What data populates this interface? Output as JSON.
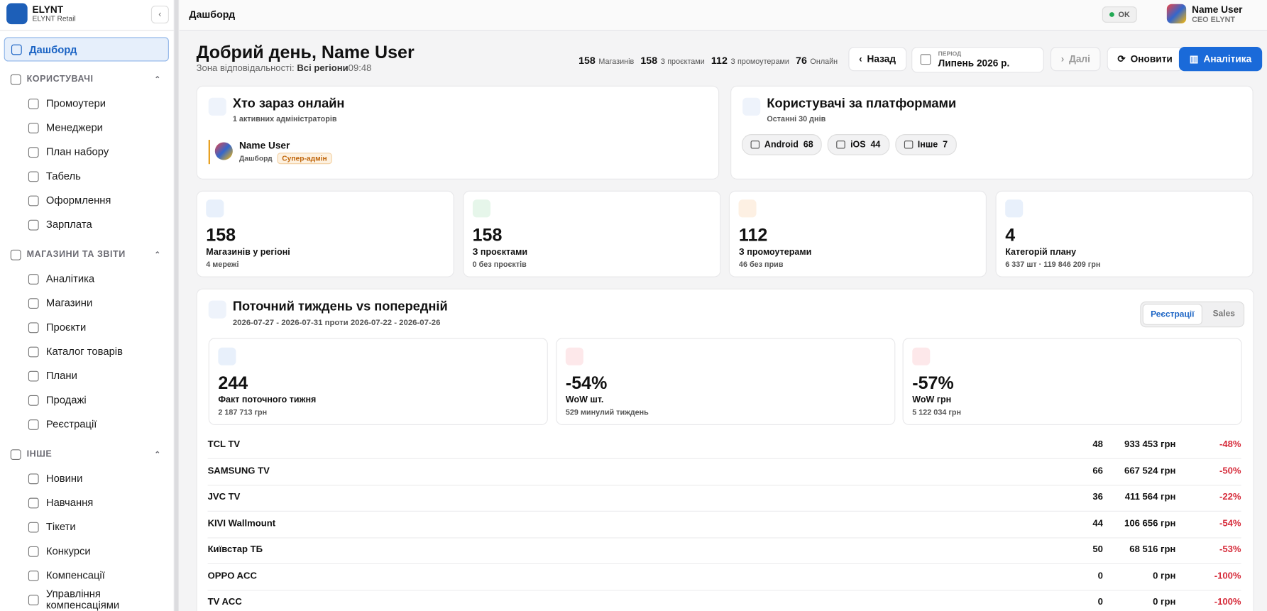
{
  "sidebar": {
    "brand": "ELYNT",
    "brand_sub": "ELYNT Retail",
    "active": "Дашборд",
    "sections": [
      {
        "title": "КОРИСТУВАЧІ",
        "items": [
          "Промоутери",
          "Менеджери",
          "План набору",
          "Табель",
          "Оформлення",
          "Зарплата"
        ]
      },
      {
        "title": "МАГАЗИНИ ТА ЗВІТИ",
        "items": [
          "Аналітика",
          "Магазини",
          "Проєкти",
          "Каталог товарів",
          "Плани",
          "Продажі",
          "Реєстрації"
        ]
      },
      {
        "title": "ІНШЕ",
        "items": [
          "Новини",
          "Навчання",
          "Тікети",
          "Конкурси",
          "Компенсації",
          "Управління компенсаціями"
        ]
      }
    ]
  },
  "topbar": {
    "page": "Дашборд",
    "status": "OK",
    "user_name": "Name User",
    "user_role": "CEO ELYNT"
  },
  "greeting": {
    "title": "Добрий день, Name User",
    "zone_label": "Зона відповідальності:",
    "zone": "Всі регіони",
    "time": "09:48"
  },
  "summary": [
    {
      "value": 158,
      "label": "Магазинів"
    },
    {
      "value": 158,
      "label": "З проєктами"
    },
    {
      "value": 112,
      "label": "З промоутерами"
    },
    {
      "value": 76,
      "label": "Онлайн"
    }
  ],
  "controls": {
    "back": "Назад",
    "period_label": "ПЕРІОД",
    "period": "Липень 2026 р.",
    "next": "Далі",
    "refresh": "Оновити",
    "analytics": "Аналітика"
  },
  "online": {
    "title": "Хто зараз онлайн",
    "subtitle": "1 активних адміністраторів",
    "users": [
      {
        "name": "Name User",
        "page": "Дашборд",
        "badge": "Супер-адмін"
      }
    ]
  },
  "platforms": {
    "title": "Користувачі за платформами",
    "subtitle": "Останні 30 днів",
    "items": [
      {
        "name": "Android",
        "count": 68
      },
      {
        "name": "iOS",
        "count": 44
      },
      {
        "name": "Інше",
        "count": 7
      }
    ]
  },
  "kpis": [
    {
      "value": 158,
      "label": "Магазинів у регіоні",
      "note": "4 мережі"
    },
    {
      "value": 158,
      "label": "З проєктами",
      "note": "0 без проєктів"
    },
    {
      "value": 112,
      "label": "З промоутерами",
      "note": "46 без прив"
    },
    {
      "value": 4,
      "label": "Категорій плану",
      "note": "6 337 шт · 119 846 209 грн"
    }
  ],
  "weekly": {
    "title": "Поточний тиждень vs попередній",
    "range": "2026-07-27 - 2026-07-31 проти 2026-07-22 - 2026-07-26",
    "tabs": [
      "Реєстрації",
      "Sales"
    ],
    "cards": [
      {
        "value": 244,
        "label": "Факт поточного тижня",
        "note": "2 187 713 грн"
      },
      {
        "value": "-54%",
        "label": "WoW шт.",
        "note": "529 минулий тиждень"
      },
      {
        "value": "-57%",
        "label": "WoW грн",
        "note": "5 122 034 грн"
      }
    ],
    "rows": [
      {
        "name": "TCL TV",
        "count": 48,
        "amount": "933 453 грн",
        "change": "-48%"
      },
      {
        "name": "SAMSUNG TV",
        "count": 66,
        "amount": "667 524 грн",
        "change": "-50%"
      },
      {
        "name": "JVC TV",
        "count": 36,
        "amount": "411 564 грн",
        "change": "-22%"
      },
      {
        "name": "KIVI Wallmount",
        "count": 44,
        "amount": "106 656 грн",
        "change": "-54%"
      },
      {
        "name": "Київстар ТБ",
        "count": 50,
        "amount": "68 516 грн",
        "change": "-53%"
      },
      {
        "name": "OPPO ACC",
        "count": 0,
        "amount": "0 грн",
        "change": "-100%"
      },
      {
        "name": "TV ACC",
        "count": 0,
        "amount": "0 грн",
        "change": "-100%"
      }
    ]
  }
}
